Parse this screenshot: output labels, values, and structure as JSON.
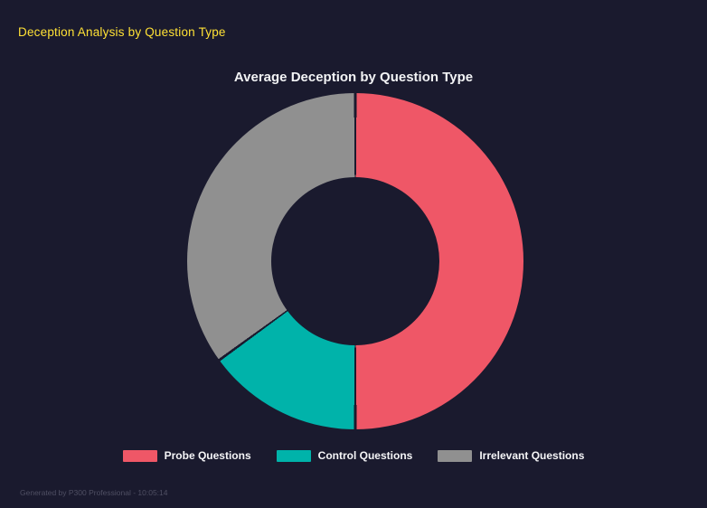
{
  "page": {
    "background": "#1a1a2e",
    "header": {
      "title": "Deception Analysis by Question Type",
      "color": "#ffe135"
    },
    "footer": {
      "text": "Generated by P300 Professional - 10:05:14",
      "color": "#4f4f63"
    }
  },
  "chart_data": {
    "type": "pie",
    "subtype": "donut",
    "title": "Average Deception by Question Type",
    "categories": [
      "Probe Questions",
      "Control Questions",
      "Irrelevant Questions"
    ],
    "values_percent": [
      50,
      15,
      35
    ],
    "colors": [
      "#ef5767",
      "#00b3aa",
      "#909090"
    ],
    "hole_ratio": 0.5,
    "start_angle_deg": 0,
    "direction": "clockwise",
    "legend_position": "bottom",
    "grid": false
  }
}
